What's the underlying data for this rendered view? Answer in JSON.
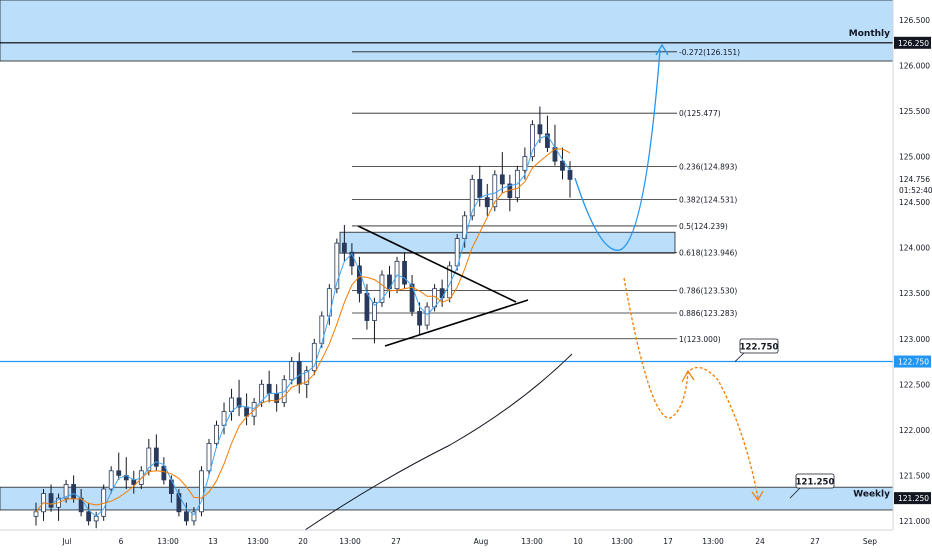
{
  "chart_data": {
    "type": "candlestick",
    "price_axis": {
      "ticks": [
        "121.000",
        "121.500",
        "122.000",
        "122.500",
        "123.000",
        "123.500",
        "124.000",
        "124.500",
        "125.000",
        "125.500",
        "126.000",
        "126.500"
      ],
      "range": [
        120.9,
        126.72
      ],
      "current_price": "124.756",
      "countdown": "01:52:40"
    },
    "time_axis": {
      "ticks": [
        "Jul",
        "6",
        "13:00",
        "13",
        "13:00",
        "20",
        "13:00",
        "27",
        "Aug",
        "13:00",
        "10",
        "13:00",
        "17",
        "13:00",
        "24",
        "27",
        "Sep"
      ]
    },
    "zones": [
      {
        "name": "Monthly",
        "label": "Monthly",
        "price_label": "126.250",
        "from": 126.05,
        "to": 126.72,
        "color": "#bbdefb"
      },
      {
        "name": "Weekly",
        "label": "Weekly",
        "price_label": "121.250",
        "from": 121.12,
        "to": 121.37,
        "color": "#bbdefb"
      },
      {
        "name": "mid-zone",
        "from": 123.94,
        "to": 124.17,
        "color": "#bbdefb"
      }
    ],
    "horizontal_lines": [
      {
        "price": 126.25,
        "color": "#000000"
      },
      {
        "price": 122.75,
        "color": "#2196f3"
      }
    ],
    "callouts": [
      "122.750",
      "121.250"
    ],
    "fib_levels": [
      {
        "ratio": "-0.272",
        "price": 126.151,
        "label": "-0.272(126.151)"
      },
      {
        "ratio": "0",
        "price": 125.477,
        "label": "0(125.477)"
      },
      {
        "ratio": "0.236",
        "price": 124.893,
        "label": "0.236(124.893)"
      },
      {
        "ratio": "0.382",
        "price": 124.531,
        "label": "0.382(124.531)"
      },
      {
        "ratio": "0.5",
        "price": 124.239,
        "label": "0.5(124.239)"
      },
      {
        "ratio": "0.618",
        "price": 123.946,
        "label": "0.618(123.946)"
      },
      {
        "ratio": "0.786",
        "price": 123.53,
        "label": "0.786(123.530)"
      },
      {
        "ratio": "0.886",
        "price": 123.283,
        "label": "0.886(123.283)"
      },
      {
        "ratio": "1",
        "price": 123.0,
        "label": "1(123.000)"
      }
    ],
    "candles": [
      [
        121.05,
        121.2,
        120.95,
        121.1
      ],
      [
        121.1,
        121.35,
        121.0,
        121.3
      ],
      [
        121.3,
        121.4,
        121.1,
        121.15
      ],
      [
        121.15,
        121.3,
        121.0,
        121.25
      ],
      [
        121.25,
        121.45,
        121.2,
        121.4
      ],
      [
        121.4,
        121.5,
        121.2,
        121.25
      ],
      [
        121.25,
        121.35,
        121.05,
        121.1
      ],
      [
        121.1,
        121.2,
        120.95,
        121.0
      ],
      [
        121.0,
        121.1,
        120.92,
        121.05
      ],
      [
        121.05,
        121.4,
        121.0,
        121.35
      ],
      [
        121.35,
        121.6,
        121.3,
        121.55
      ],
      [
        121.55,
        121.75,
        121.45,
        121.5
      ],
      [
        121.5,
        121.7,
        121.35,
        121.45
      ],
      [
        121.45,
        121.55,
        121.3,
        121.4
      ],
      [
        121.4,
        121.6,
        121.35,
        121.55
      ],
      [
        121.55,
        121.9,
        121.5,
        121.8
      ],
      [
        121.8,
        121.95,
        121.55,
        121.6
      ],
      [
        121.6,
        121.7,
        121.4,
        121.45
      ],
      [
        121.45,
        121.5,
        121.2,
        121.3
      ],
      [
        121.3,
        121.35,
        121.05,
        121.1
      ],
      [
        121.1,
        121.2,
        120.95,
        121.0
      ],
      [
        121.0,
        121.15,
        120.95,
        121.1
      ],
      [
        121.1,
        121.6,
        121.05,
        121.55
      ],
      [
        121.55,
        121.9,
        121.5,
        121.85
      ],
      [
        121.85,
        122.1,
        121.8,
        122.05
      ],
      [
        122.05,
        122.3,
        121.95,
        122.2
      ],
      [
        122.2,
        122.45,
        122.1,
        122.35
      ],
      [
        122.35,
        122.55,
        122.15,
        122.25
      ],
      [
        122.25,
        122.4,
        122.05,
        122.15
      ],
      [
        122.15,
        122.35,
        122.05,
        122.3
      ],
      [
        122.3,
        122.55,
        122.25,
        122.5
      ],
      [
        122.5,
        122.65,
        122.3,
        122.4
      ],
      [
        122.4,
        122.5,
        122.2,
        122.3
      ],
      [
        122.3,
        122.6,
        122.25,
        122.55
      ],
      [
        122.55,
        122.8,
        122.5,
        122.75
      ],
      [
        122.75,
        122.85,
        122.4,
        122.5
      ],
      [
        122.5,
        122.7,
        122.35,
        122.65
      ],
      [
        122.65,
        123.0,
        122.6,
        122.95
      ],
      [
        122.95,
        123.3,
        122.9,
        123.25
      ],
      [
        123.25,
        123.6,
        123.15,
        123.55
      ],
      [
        123.55,
        124.1,
        123.5,
        124.05
      ],
      [
        124.05,
        124.25,
        123.85,
        123.95
      ],
      [
        123.95,
        124.05,
        123.7,
        123.8
      ],
      [
        123.8,
        123.9,
        123.4,
        123.5
      ],
      [
        123.5,
        123.6,
        123.1,
        123.2
      ],
      [
        123.2,
        123.45,
        122.95,
        123.4
      ],
      [
        123.4,
        123.75,
        123.35,
        123.7
      ],
      [
        123.7,
        123.8,
        123.45,
        123.55
      ],
      [
        123.55,
        123.9,
        123.5,
        123.85
      ],
      [
        123.85,
        123.95,
        123.55,
        123.6
      ],
      [
        123.6,
        123.7,
        123.25,
        123.3
      ],
      [
        123.3,
        123.4,
        123.05,
        123.15
      ],
      [
        123.15,
        123.4,
        123.1,
        123.35
      ],
      [
        123.35,
        123.6,
        123.3,
        123.55
      ],
      [
        123.55,
        123.65,
        123.35,
        123.45
      ],
      [
        123.45,
        123.85,
        123.4,
        123.8
      ],
      [
        123.8,
        124.15,
        123.75,
        124.1
      ],
      [
        124.1,
        124.4,
        124.0,
        124.35
      ],
      [
        124.35,
        124.8,
        124.3,
        124.75
      ],
      [
        124.75,
        124.9,
        124.45,
        124.55
      ],
      [
        124.55,
        124.7,
        124.35,
        124.45
      ],
      [
        124.45,
        124.85,
        124.4,
        124.8
      ],
      [
        124.8,
        125.05,
        124.6,
        124.7
      ],
      [
        124.7,
        124.8,
        124.4,
        124.55
      ],
      [
        124.55,
        124.9,
        124.5,
        124.85
      ],
      [
        124.85,
        125.1,
        124.75,
        125.0
      ],
      [
        125.0,
        125.4,
        124.95,
        125.35
      ],
      [
        125.35,
        125.55,
        125.15,
        125.25
      ],
      [
        125.25,
        125.45,
        125.05,
        125.1
      ],
      [
        125.1,
        125.35,
        124.9,
        124.95
      ],
      [
        124.95,
        125.1,
        124.75,
        124.85
      ],
      [
        124.85,
        124.95,
        124.55,
        124.75
      ]
    ]
  }
}
